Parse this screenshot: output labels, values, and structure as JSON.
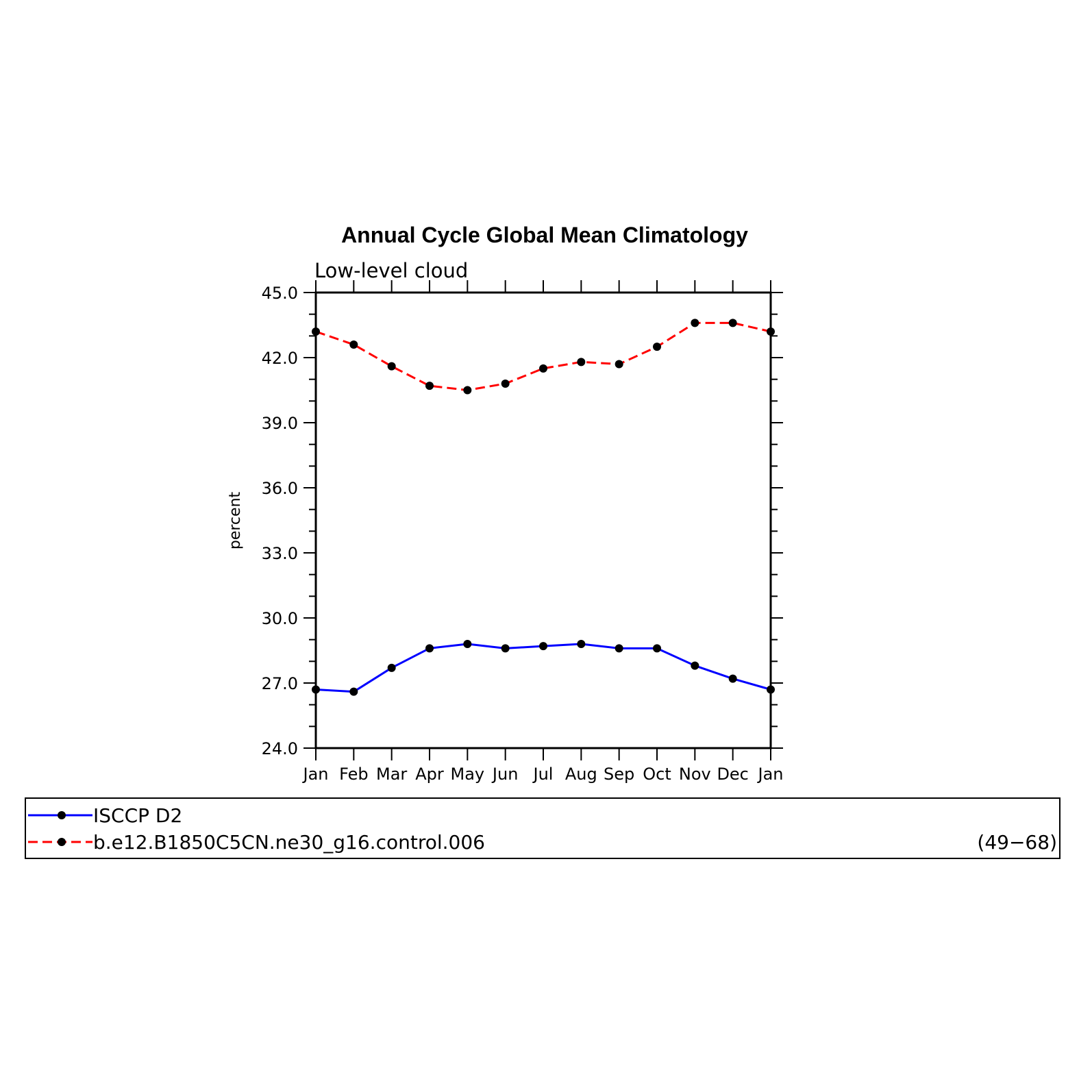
{
  "chart_data": {
    "type": "line",
    "title": "Annual Cycle Global Mean Climatology",
    "subtitle": "Low-level cloud",
    "ylabel": "percent",
    "xlabel": "",
    "ylim": [
      24.0,
      45.0
    ],
    "yticks": [
      "24.0",
      "27.0",
      "30.0",
      "33.0",
      "36.0",
      "39.0",
      "42.0",
      "45.0"
    ],
    "categories": [
      "Jan",
      "Feb",
      "Mar",
      "Apr",
      "May",
      "Jun",
      "Jul",
      "Aug",
      "Sep",
      "Oct",
      "Nov",
      "Dec",
      "Jan"
    ],
    "series": [
      {
        "name": "ISCCP D2",
        "color": "#0000ff",
        "dash": "solid",
        "marker": "filled-circle",
        "values": [
          26.7,
          26.6,
          27.7,
          28.6,
          28.8,
          28.6,
          28.7,
          28.8,
          28.6,
          28.6,
          27.8,
          27.2,
          26.7
        ]
      },
      {
        "name": "b.e12.B1850C5CN.ne30_g16.control.006",
        "color": "#ff0000",
        "dash": "dashed",
        "marker": "filled-circle",
        "values": [
          43.2,
          42.6,
          41.6,
          40.7,
          40.5,
          40.8,
          41.5,
          41.8,
          41.7,
          42.5,
          43.6,
          43.6,
          43.2
        ]
      }
    ],
    "legend_note": "(49−68)",
    "legend_position": "bottom",
    "grid": false
  }
}
